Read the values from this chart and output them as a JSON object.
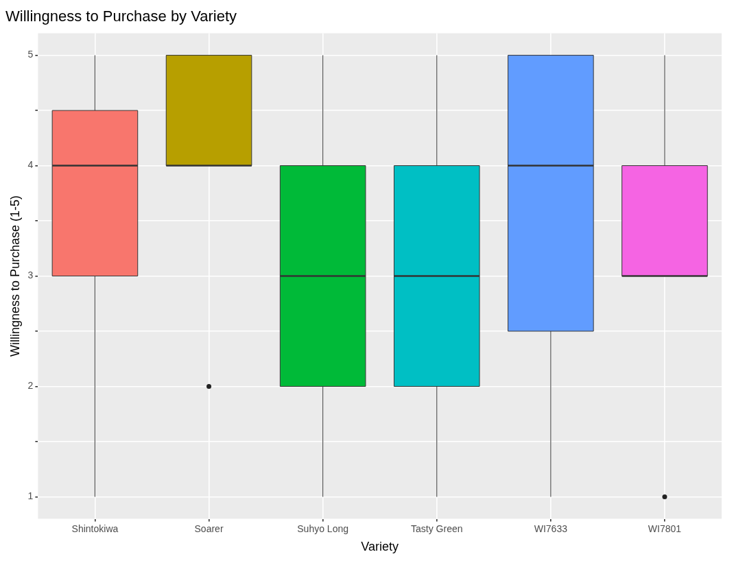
{
  "chart_data": {
    "type": "box",
    "title": "Willingness to Purchase by Variety",
    "xlabel": "Variety",
    "ylabel": "Willingness to Purchase (1-5)",
    "categories": [
      "Shintokiwa",
      "Soarer",
      "Suhyo Long",
      "Tasty Green",
      "WI7633",
      "WI7801"
    ],
    "colors": [
      "#f8766d",
      "#b79f00",
      "#00ba38",
      "#00bfc4",
      "#619cff",
      "#f564e3"
    ],
    "boxes": [
      {
        "low": 1,
        "q1": 3,
        "median": 4,
        "q3": 4.5,
        "high": 5
      },
      {
        "low": 4,
        "q1": 4,
        "median": 4,
        "q3": 5,
        "high": 5,
        "outliers": [
          2
        ]
      },
      {
        "low": 1,
        "q1": 2,
        "median": 3,
        "q3": 4,
        "high": 5
      },
      {
        "low": 1,
        "q1": 2,
        "median": 3,
        "q3": 4,
        "high": 5
      },
      {
        "low": 1,
        "q1": 2.5,
        "median": 4,
        "q3": 5,
        "high": 5
      },
      {
        "low": 3,
        "q1": 3,
        "median": 3,
        "q3": 4,
        "high": 5,
        "outliers": [
          1
        ]
      }
    ],
    "ylim": [
      0.8,
      5.2
    ],
    "yticks": [
      1,
      {
        "value": 1.5,
        "label": null
      },
      2,
      {
        "value": 2.5,
        "label": null
      },
      3,
      {
        "value": 3.5,
        "label": null
      },
      4,
      {
        "value": 4.5,
        "label": null
      },
      5
    ],
    "grid": true,
    "legend": false
  }
}
